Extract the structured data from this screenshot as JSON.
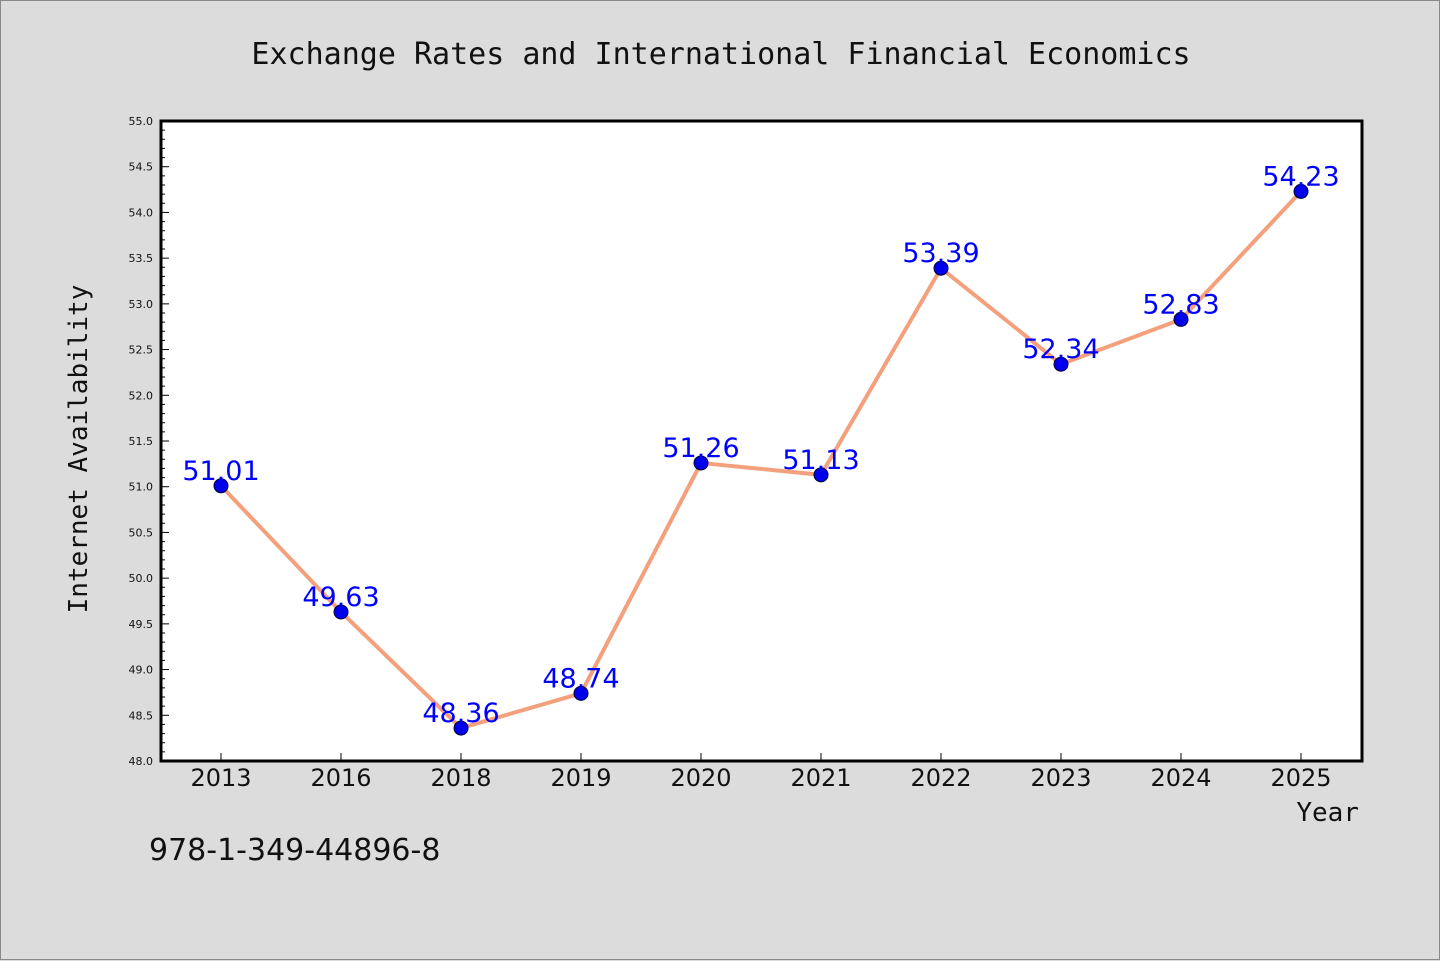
{
  "chart_data": {
    "type": "line",
    "title": "Exchange Rates and International Financial Economics",
    "xlabel": "Year",
    "ylabel": "Internet Availability",
    "categories": [
      "2013",
      "2016",
      "2018",
      "2019",
      "2020",
      "2021",
      "2022",
      "2023",
      "2024",
      "2025"
    ],
    "series": [
      {
        "values": [
          51.01,
          49.63,
          48.36,
          48.74,
          51.26,
          51.13,
          53.39,
          52.34,
          52.83,
          54.23
        ],
        "data_labels": [
          "51.01",
          "49.63",
          "48.36",
          "48.74",
          "51.26",
          "51.13",
          "53.39",
          "52.34",
          "52.83",
          "54.23"
        ],
        "line_color": "#f4a07c",
        "marker_color": "#0000ee",
        "label_color": "#0000ff"
      }
    ],
    "ylim": [
      48.0,
      55.0
    ],
    "yticks": [
      "48.0",
      "48.5",
      "49.0",
      "49.5",
      "50.0",
      "50.5",
      "51.0",
      "51.5",
      "52.0",
      "52.5",
      "53.0",
      "53.5",
      "54.0",
      "54.5",
      "55.0"
    ],
    "grid": false,
    "legend": "none"
  },
  "annotation": {
    "isbn": "978-1-349-44896-8"
  },
  "colors": {
    "background": "#dcdcdc",
    "plot_area": "#ffffff",
    "axis": "#000000"
  }
}
